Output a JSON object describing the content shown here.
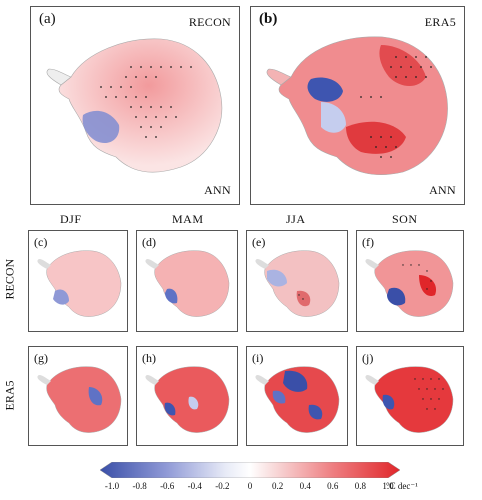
{
  "chart_data": {
    "type": "map",
    "colorbar": {
      "ticks": [
        "-1.0",
        "-0.8",
        "-0.6",
        "-0.4",
        "-0.2",
        "0",
        "0.2",
        "0.4",
        "0.6",
        "0.8",
        "1.0"
      ],
      "unit": "°C dec⁻¹",
      "range": [
        -1.0,
        1.0
      ],
      "colors": [
        "#3a4fa8",
        "#ffffff",
        "#e0262a"
      ]
    },
    "columns": [
      "DJF",
      "MAM",
      "JJA",
      "SON"
    ],
    "rows": [
      "RECON",
      "ERA5"
    ],
    "panels": [
      {
        "label": "(a)",
        "source": "RECON",
        "season": "ANN"
      },
      {
        "label": "(b)",
        "source": "ERA5",
        "season": "ANN"
      },
      {
        "label": "(c)"
      },
      {
        "label": "(d)"
      },
      {
        "label": "(e)"
      },
      {
        "label": "(f)"
      },
      {
        "label": "(g)"
      },
      {
        "label": "(h)"
      },
      {
        "label": "(i)"
      },
      {
        "label": "(j)"
      }
    ]
  }
}
